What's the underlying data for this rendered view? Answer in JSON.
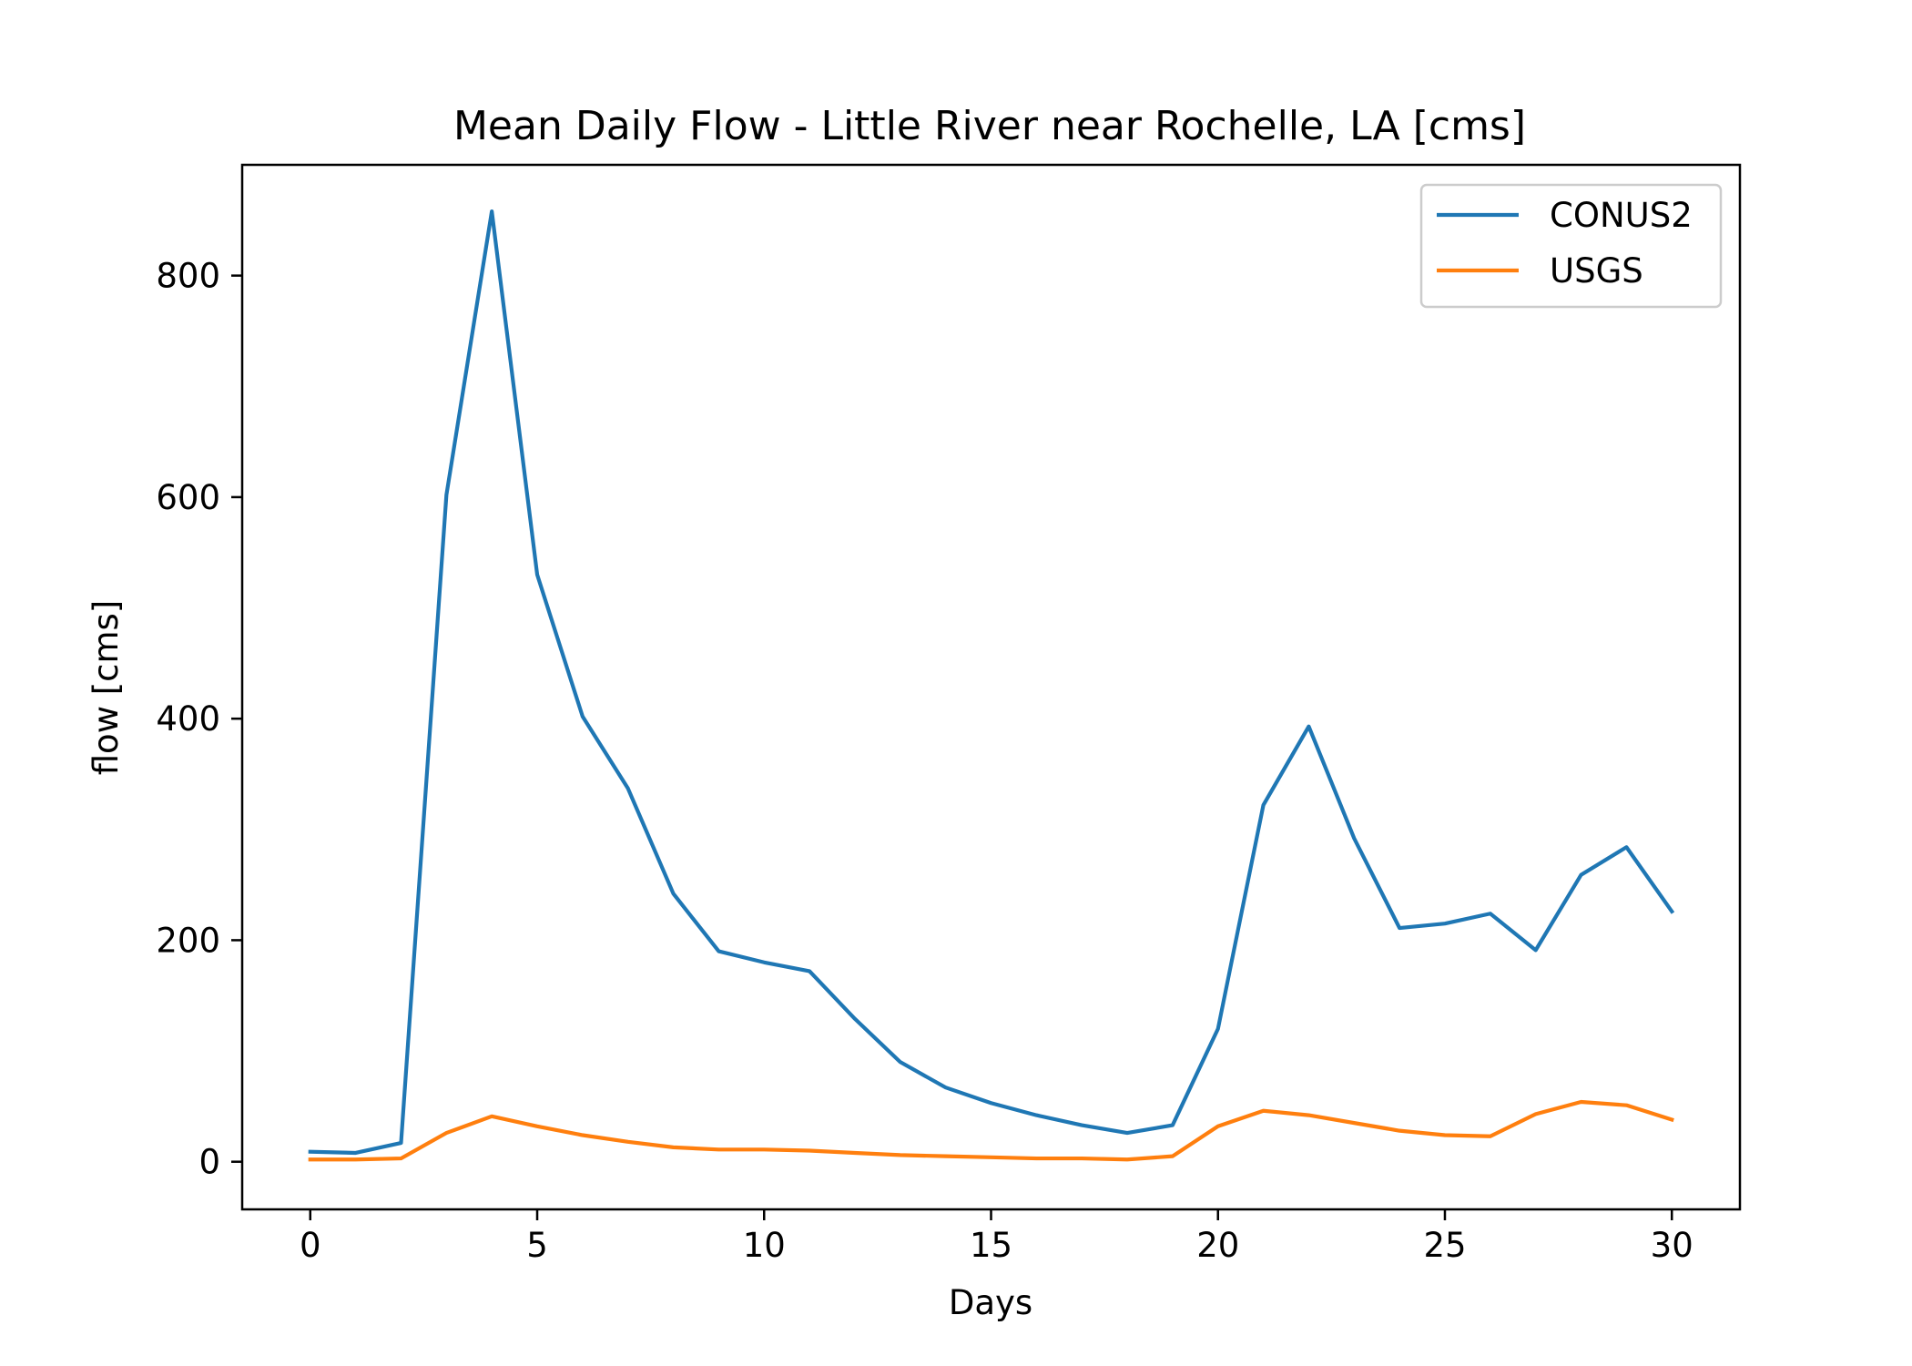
{
  "chart_data": {
    "type": "line",
    "title": "Mean Daily Flow - Little River near Rochelle, LA [cms]",
    "xlabel": "Days",
    "ylabel": "flow [cms]",
    "xlim": [
      -1.5,
      31.5
    ],
    "ylim": [
      -43,
      900
    ],
    "xticks": [
      0,
      5,
      10,
      15,
      20,
      25,
      30
    ],
    "yticks": [
      0,
      200,
      400,
      600,
      800
    ],
    "grid": false,
    "legend_position": "top-right",
    "x": [
      0,
      1,
      2,
      3,
      4,
      5,
      6,
      7,
      8,
      9,
      10,
      11,
      12,
      13,
      14,
      15,
      16,
      17,
      18,
      19,
      20,
      21,
      22,
      23,
      24,
      25,
      26,
      27,
      28,
      29,
      30
    ],
    "series": [
      {
        "name": "CONUS2",
        "color": "#1f77b4",
        "values": [
          9,
          8,
          17,
          602,
          858,
          530,
          402,
          337,
          242,
          190,
          180,
          172,
          129,
          90,
          67,
          53,
          42,
          33,
          26,
          33,
          120,
          322,
          393,
          292,
          211,
          215,
          224,
          191,
          259,
          284,
          226
        ]
      },
      {
        "name": "USGS",
        "color": "#ff7f0e",
        "values": [
          2,
          2,
          3,
          26,
          41,
          32,
          24,
          18,
          13,
          11,
          11,
          10,
          8,
          6,
          5,
          4,
          3,
          3,
          2,
          5,
          32,
          46,
          42,
          35,
          28,
          24,
          23,
          43,
          54,
          51,
          38
        ]
      }
    ]
  }
}
